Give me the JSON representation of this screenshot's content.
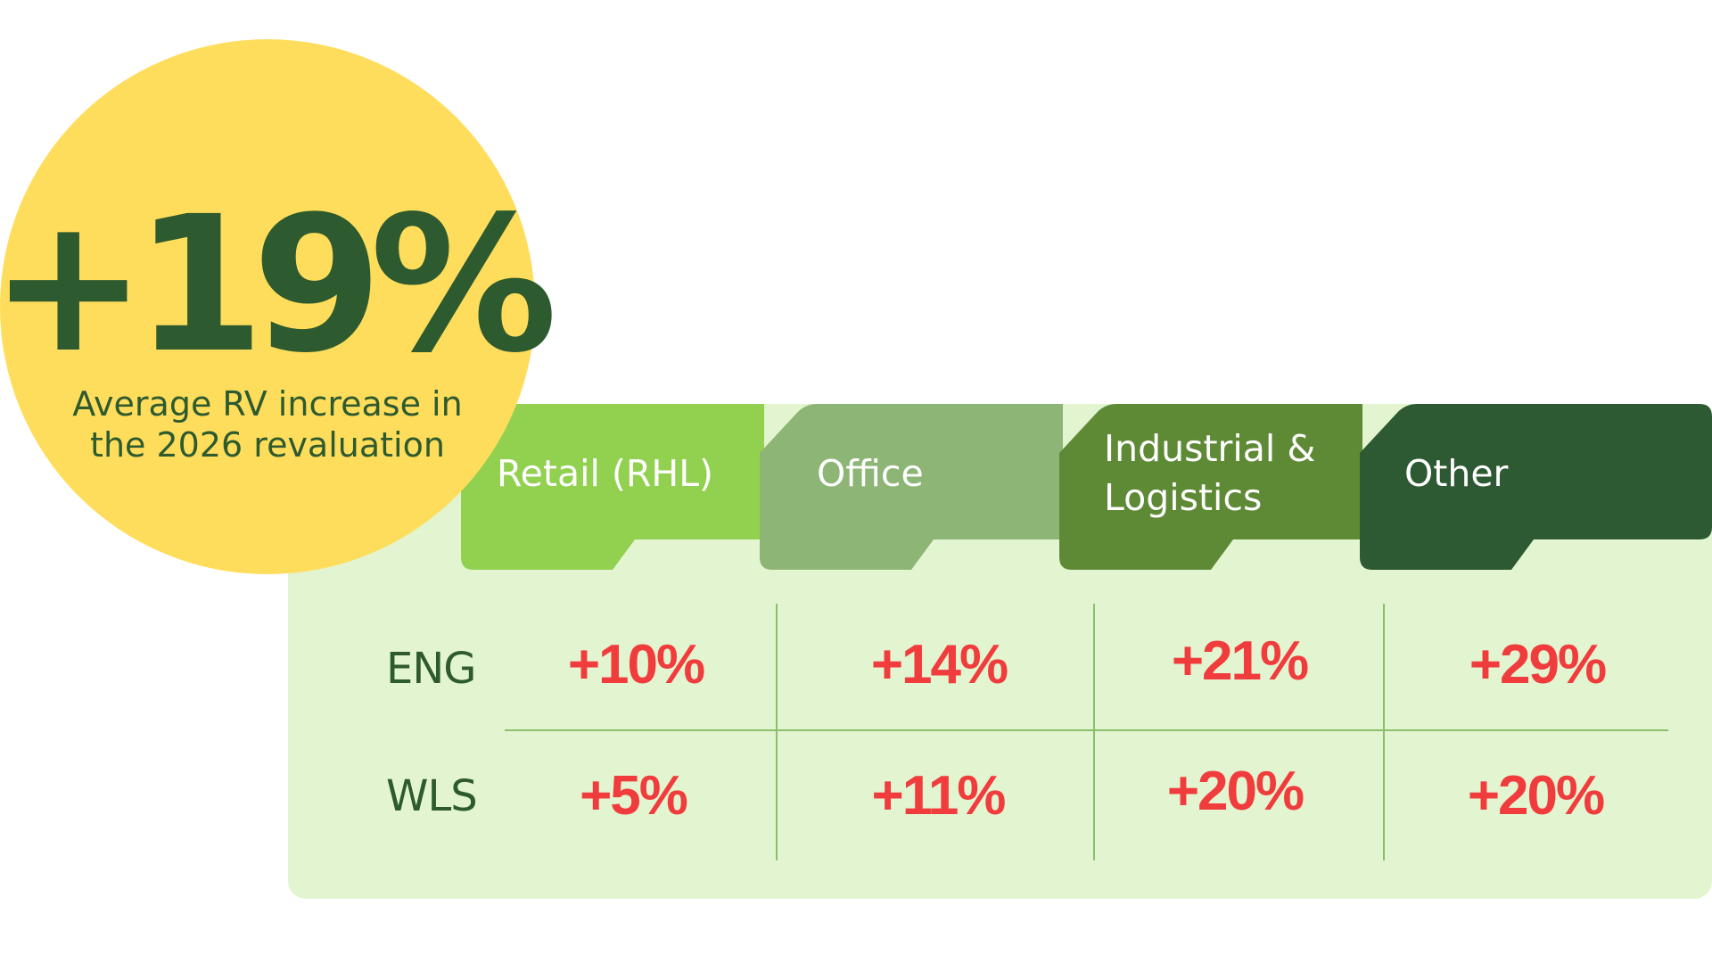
{
  "colors": {
    "panel_bg": "#e3f4d0",
    "circle_bg": "#ffdd5c",
    "dark_green_text": "#2d5a2e",
    "value_red": "#f03c3c",
    "grid_line": "#8cbf6a"
  },
  "headline": {
    "stat": "+19%",
    "caption": "Average RV increase in\nthe 2026 revaluation"
  },
  "chart_data": {
    "type": "table",
    "columns": [
      {
        "label": "Retail (RHL)",
        "color": "#92d050"
      },
      {
        "label": "Industrial & Logistics",
        "color": "#5e8a36"
      },
      {
        "label": "Office",
        "color": "#8db575"
      },
      {
        "label": "Other",
        "color": "#2d5a32"
      }
    ],
    "rows": [
      {
        "label": "ENG",
        "values": [
          "+10%",
          "+14%",
          "+21%",
          "+29%"
        ]
      },
      {
        "label": "WLS",
        "values": [
          "+5%",
          "+11%",
          "+20%",
          "+20%"
        ]
      }
    ],
    "column_order": [
      "Retail (RHL)",
      "Office",
      "Industrial & Logistics",
      "Other"
    ]
  },
  "tabs": [
    {
      "label": "Retail (RHL)",
      "color": "#92d050"
    },
    {
      "label": "Office",
      "color": "#8db575"
    },
    {
      "label": "Industrial &\nLogistics",
      "color": "#5e8a36"
    },
    {
      "label": "Other",
      "color": "#2d5a32"
    }
  ],
  "table": {
    "rows": [
      {
        "label": "ENG",
        "values": [
          "+10%",
          "+14%",
          "+21%",
          "+29%"
        ]
      },
      {
        "label": "WLS",
        "values": [
          "+5%",
          "+11%",
          "+20%",
          "+20%"
        ]
      }
    ]
  }
}
